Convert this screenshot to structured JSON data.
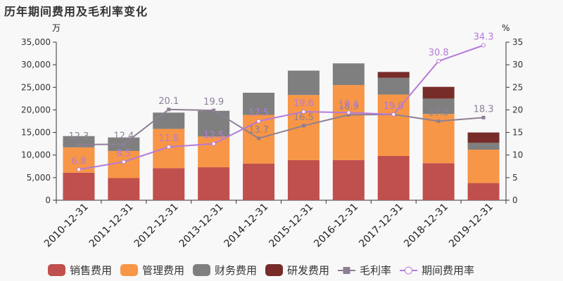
{
  "chart_data": {
    "type": "bar",
    "title": "历年期间费用及毛利率变化",
    "left_unit": "万",
    "right_unit": "%",
    "categories": [
      "2010-12-31",
      "2011-12-31",
      "2012-12-31",
      "2013-12-31",
      "2014-12-31",
      "2015-12-31",
      "2016-12-31",
      "2017-12-31",
      "2018-12-31",
      "2019-12-31"
    ],
    "ylim_left": [
      0,
      35000
    ],
    "left_ticks": [
      "0",
      "5,000",
      "10,000",
      "15,000",
      "20,000",
      "25,000",
      "30,000",
      "35,000"
    ],
    "ylim_right": [
      0,
      35
    ],
    "right_ticks": [
      "0",
      "5",
      "10",
      "15",
      "20",
      "25",
      "30",
      "35"
    ],
    "bar_series": [
      {
        "name": "销售费用",
        "color": "#c0504d",
        "values": [
          6100,
          4900,
          7100,
          7300,
          8100,
          8900,
          8900,
          9800,
          8200,
          3800
        ]
      },
      {
        "name": "管理费用",
        "color": "#f79646",
        "values": [
          5600,
          6000,
          8700,
          6800,
          10800,
          14400,
          16600,
          13600,
          10900,
          7400
        ]
      },
      {
        "name": "财务费用",
        "color": "#7f7f7f",
        "values": [
          2500,
          3000,
          3600,
          5700,
          4900,
          5400,
          4800,
          3700,
          3400,
          1500
        ]
      },
      {
        "name": "研发费用",
        "color": "#772c2a",
        "values": [
          0,
          0,
          0,
          0,
          0,
          0,
          0,
          1300,
          2600,
          2300
        ]
      }
    ],
    "line_series": [
      {
        "name": "毛利率",
        "color": "#8e7f94",
        "values": [
          12.3,
          12.4,
          20.1,
          19.9,
          13.7,
          16.5,
          18.9,
          19.0,
          17.5,
          18.3
        ],
        "labels": [
          "12.3",
          "12.4",
          "20.1",
          "19.9",
          "13.7",
          "16.5",
          "18.9",
          "19.0",
          "17.5",
          "18.3"
        ]
      },
      {
        "name": "期间费用率",
        "color": "#b57bd8",
        "values": [
          6.8,
          8.5,
          11.8,
          12.5,
          17.5,
          19.6,
          19.4,
          19.0,
          30.8,
          34.3
        ],
        "labels": [
          "6.8",
          "8.5",
          "11.8",
          "12.5",
          "17.5",
          "19.6",
          "19.4",
          "19.0",
          "30.8",
          "34.3"
        ]
      }
    ],
    "legend_position": "bottom",
    "grid": false
  }
}
